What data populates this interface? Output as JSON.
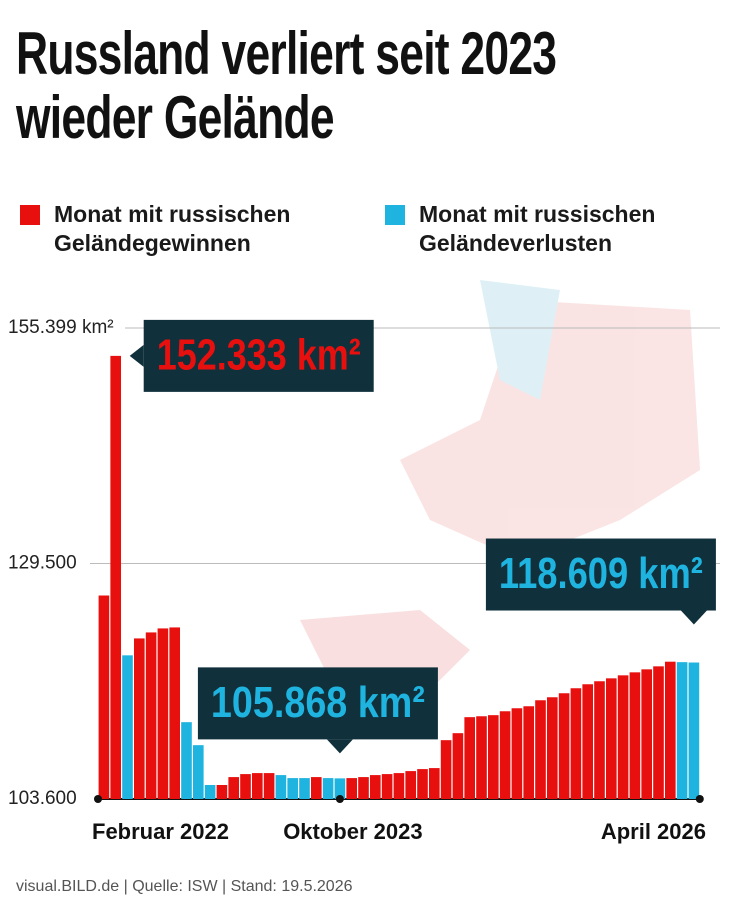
{
  "chart_data": {
    "type": "bar",
    "title": "Russland verliert seit 2023 wieder Gelände",
    "footer": "visual.BILD.de | Quelle: ISW | Stand: 19.5.2026",
    "categories": [
      "Februar 2022",
      null,
      null,
      null,
      null,
      null,
      null,
      null,
      null,
      null,
      null,
      null,
      null,
      null,
      null,
      null,
      null,
      null,
      null,
      null,
      "Oktober 2023",
      null,
      null,
      null,
      null,
      null,
      null,
      null,
      null,
      null,
      null,
      null,
      null,
      null,
      null,
      null,
      null,
      null,
      null,
      null,
      null,
      null,
      null,
      null,
      null,
      null,
      null,
      null,
      null,
      null,
      "April 2026"
    ],
    "series": [
      {
        "name": "Monat mit russischen Geländegewinnen",
        "color": "#e8100f",
        "values": [
          125980,
          152333,
          null,
          121260,
          121920,
          122360,
          122470,
          null,
          null,
          null,
          105140,
          106010,
          106340,
          106450,
          106450,
          null,
          null,
          null,
          106010,
          null,
          null,
          105900,
          106010,
          106230,
          106340,
          106450,
          106670,
          106890,
          107000,
          110070,
          110840,
          112600,
          112700,
          112820,
          113250,
          113580,
          113800,
          114460,
          114790,
          115230,
          115780,
          116220,
          116550,
          116870,
          117200,
          117530,
          117860,
          118190,
          118700,
          null,
          null
        ],
        "value_labels": [
          null,
          "152.333 km²",
          null,
          null,
          null,
          null,
          null,
          null,
          null,
          null,
          null,
          null,
          null,
          null,
          null,
          null,
          null,
          null,
          null,
          null,
          null,
          null,
          null,
          null,
          null,
          null,
          null,
          null,
          null,
          null,
          null,
          null,
          null,
          null,
          null,
          null,
          null,
          null,
          null,
          null,
          null,
          null,
          null,
          null,
          null,
          null,
          null,
          null,
          null,
          null,
          null
        ]
      },
      {
        "name": "Monat mit russischen Geländeverlusten",
        "color": "#1fb4e0",
        "values": [
          null,
          null,
          119400,
          null,
          null,
          null,
          null,
          112050,
          109520,
          105140,
          null,
          null,
          null,
          null,
          null,
          106230,
          105900,
          105900,
          null,
          105900,
          105868,
          null,
          null,
          null,
          null,
          null,
          null,
          null,
          null,
          null,
          null,
          null,
          null,
          null,
          null,
          null,
          null,
          null,
          null,
          null,
          null,
          null,
          null,
          null,
          null,
          null,
          null,
          null,
          null,
          118650,
          118609
        ],
        "value_labels": [
          null,
          null,
          null,
          null,
          null,
          null,
          null,
          null,
          null,
          null,
          null,
          null,
          null,
          null,
          null,
          null,
          null,
          null,
          null,
          null,
          "105.868 km²",
          null,
          null,
          null,
          null,
          null,
          null,
          null,
          null,
          null,
          null,
          null,
          null,
          null,
          null,
          null,
          null,
          null,
          null,
          null,
          null,
          null,
          null,
          null,
          null,
          null,
          null,
          null,
          null,
          null,
          "118.609 km²"
        ]
      }
    ],
    "ylim": [
      103600,
      155399
    ],
    "yticks": [
      {
        "value": 103600,
        "label": "103.600"
      },
      {
        "value": 129500,
        "label": "129.500"
      },
      {
        "value": 155399,
        "label": "155.399 km²"
      }
    ],
    "grid": true
  }
}
